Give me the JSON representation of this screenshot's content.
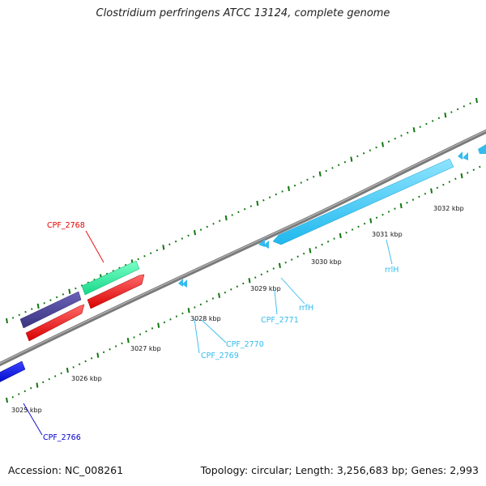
{
  "title": "Clostridium perfringens ATCC 13124, complete genome",
  "footer": {
    "accession": "Accession: NC_008261",
    "stats": "Topology: circular; Length: 3,256,683 bp; Genes: 2,993"
  },
  "tick_labels": [
    "3025 kbp",
    "3026 kbp",
    "3027 kbp",
    "3028 kbp",
    "3029 kbp",
    "3030 kbp",
    "3031 kbp",
    "3032 kbp"
  ],
  "gene_labels": [
    {
      "name": "CPF_2768",
      "color": "#e00000"
    },
    {
      "name": "CPF_2766",
      "color": "#0000cc"
    },
    {
      "name": "CPF_2769",
      "color": "#33bbee"
    },
    {
      "name": "CPF_2770",
      "color": "#33bbee"
    },
    {
      "name": "CPF_2771",
      "color": "#33bbee"
    },
    {
      "name": "rrfH",
      "color": "#33bbee"
    },
    {
      "name": "rrlH",
      "color": "#33bbee"
    }
  ],
  "colors": {
    "backbone": "#8a8a8a",
    "tick": "#117711",
    "gene_red": "#ff1a1a",
    "gene_navy": "#4b4499",
    "gene_green": "#22ee99",
    "gene_blue": "#0a14e0",
    "gene_cyan": "#33ccf5"
  }
}
